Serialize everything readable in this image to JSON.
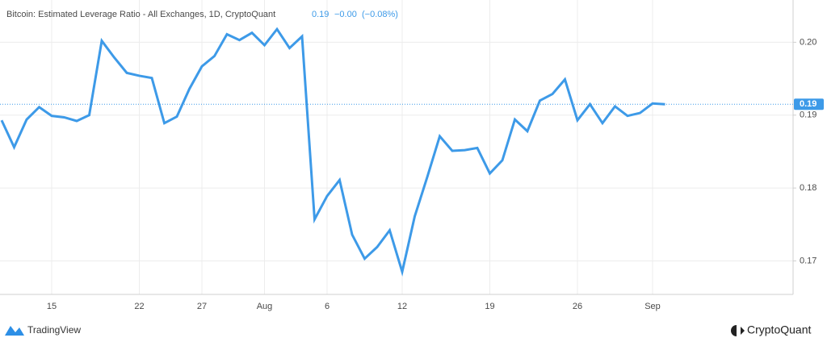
{
  "chart_data": {
    "type": "line",
    "title": "Bitcoin: Estimated Leverage Ratio - All Exchanges, 1D, CryptoQuant",
    "legend_values": [
      "0.19",
      "−0.00",
      "(−0.08%)"
    ],
    "categories": [
      null,
      null,
      null,
      null,
      "15",
      null,
      null,
      null,
      null,
      null,
      null,
      "22",
      null,
      null,
      null,
      null,
      "27",
      null,
      null,
      null,
      null,
      "Aug",
      null,
      null,
      null,
      null,
      "6",
      null,
      null,
      null,
      null,
      null,
      "12",
      null,
      null,
      null,
      null,
      null,
      null,
      "19",
      null,
      null,
      null,
      null,
      null,
      null,
      "26",
      null,
      null,
      null,
      null,
      null,
      "Sep",
      null
    ],
    "values": [
      0.1893,
      0.1856,
      0.1894,
      0.1911,
      0.1899,
      0.1897,
      0.1892,
      0.19,
      0.2002,
      0.1979,
      0.1958,
      0.1954,
      0.1951,
      0.1889,
      0.1898,
      0.1936,
      0.1967,
      0.1981,
      0.2011,
      0.2003,
      0.2013,
      0.1996,
      0.2018,
      0.1992,
      0.2008,
      0.1757,
      0.1789,
      0.1811,
      0.1736,
      0.1703,
      0.1719,
      0.1742,
      0.1685,
      0.1761,
      0.1815,
      0.1871,
      0.1851,
      0.1852,
      0.1855,
      0.182,
      0.1838,
      0.1894,
      0.1878,
      0.192,
      0.1929,
      0.1949,
      0.1893,
      0.1915,
      0.1889,
      0.1912,
      0.1899,
      0.1903,
      0.1916,
      0.1915
    ],
    "color": "#3d9ae8",
    "last_value": {
      "value": 0.1915,
      "label": "0.19"
    },
    "ylim": [
      0.1654,
      0.2058
    ],
    "yticks": [
      {
        "value": 0.2,
        "label": "0.20"
      },
      0.19,
      0.18,
      0.17
    ],
    "grid": true,
    "brand_left": "TradingView",
    "brand_right": "CryptoQuant"
  }
}
